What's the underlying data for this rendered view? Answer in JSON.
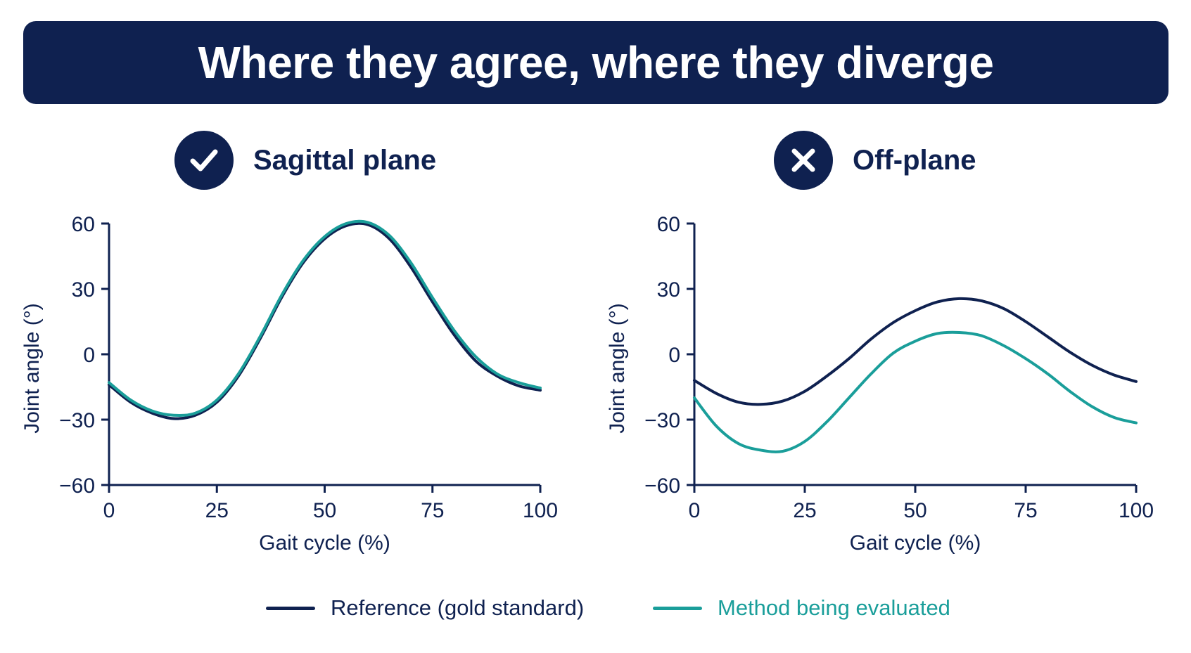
{
  "header": {
    "title": "Where they agree, where they diverge"
  },
  "colors": {
    "navy": "#0f2150",
    "teal": "#1a9e9a"
  },
  "panels": [
    {
      "title": "Sagittal plane",
      "icon": "check-icon"
    },
    {
      "title": "Off-plane",
      "icon": "cross-icon"
    }
  ],
  "legend": {
    "reference": "Reference (gold standard)",
    "method": "Method being evaluated"
  },
  "chart_data": [
    {
      "type": "line",
      "title": "Sagittal plane",
      "xlabel": "Gait cycle (%)",
      "ylabel": "Joint angle (°)",
      "xlim": [
        0,
        100
      ],
      "ylim": [
        -60,
        60
      ],
      "xticks": [
        0,
        25,
        50,
        75,
        100
      ],
      "yticks": [
        60,
        30,
        0,
        -30,
        -60
      ],
      "ytick_labels": [
        "60",
        "30",
        "0",
        "−30",
        "−60"
      ],
      "grid": false,
      "x": [
        0,
        5,
        10,
        15,
        20,
        25,
        30,
        35,
        40,
        45,
        50,
        55,
        60,
        65,
        70,
        75,
        80,
        85,
        90,
        95,
        100
      ],
      "series": [
        {
          "name": "Reference (gold standard)",
          "color": "#0f2150",
          "values": [
            -14,
            -22,
            -27,
            -29.5,
            -28,
            -22,
            -10,
            7,
            26,
            42,
            53,
            59,
            59.5,
            53,
            40,
            24,
            9,
            -3,
            -10,
            -14.5,
            -16.5
          ]
        },
        {
          "name": "Method being evaluated",
          "color": "#1a9e9a",
          "values": [
            -13,
            -21,
            -26,
            -28,
            -27,
            -21,
            -9,
            8,
            27,
            43,
            54,
            60,
            60.5,
            54.5,
            42,
            26,
            11,
            -1,
            -9,
            -13,
            -15.5
          ]
        }
      ]
    },
    {
      "type": "line",
      "title": "Off-plane",
      "xlabel": "Gait cycle (%)",
      "ylabel": "Joint angle (°)",
      "xlim": [
        0,
        100
      ],
      "ylim": [
        -60,
        60
      ],
      "xticks": [
        0,
        25,
        50,
        75,
        100
      ],
      "yticks": [
        60,
        30,
        0,
        -30,
        -60
      ],
      "ytick_labels": [
        "60",
        "30",
        "0",
        "−30",
        "−60"
      ],
      "grid": false,
      "x": [
        0,
        5,
        10,
        15,
        20,
        25,
        30,
        35,
        40,
        45,
        50,
        55,
        60,
        65,
        70,
        75,
        80,
        85,
        90,
        95,
        100
      ],
      "series": [
        {
          "name": "Reference (gold standard)",
          "color": "#0f2150",
          "values": [
            -12,
            -18,
            -22,
            -23,
            -21.5,
            -17,
            -10,
            -2,
            7,
            14.5,
            20,
            24,
            25.5,
            24.5,
            21,
            15,
            8,
            1,
            -5,
            -9.5,
            -12.5
          ]
        },
        {
          "name": "Method being evaluated",
          "color": "#1a9e9a",
          "values": [
            -20,
            -33,
            -41,
            -44,
            -44.5,
            -40,
            -31,
            -20,
            -9,
            0.5,
            6,
            9.5,
            10,
            8.5,
            4,
            -2,
            -9,
            -17,
            -24,
            -29,
            -31.5
          ]
        }
      ]
    }
  ]
}
